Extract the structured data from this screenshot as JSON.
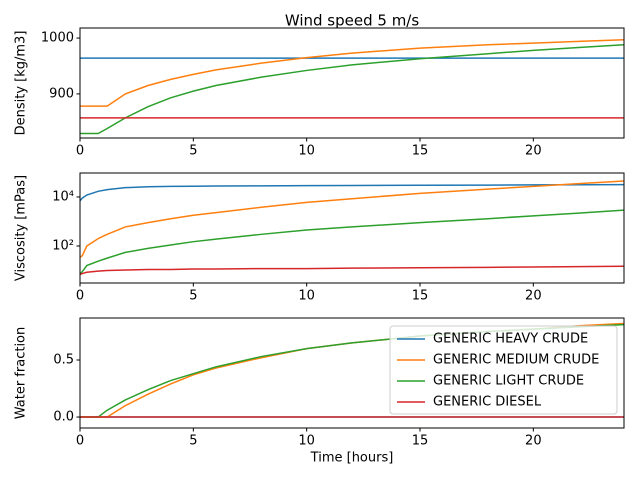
{
  "chart_data": [
    {
      "type": "line",
      "title": "Wind speed 5 m/s",
      "ylabel": "Density [kg/m3]",
      "x": [
        0,
        0.1,
        0.3,
        0.8,
        1.2,
        2,
        3,
        4,
        5,
        6,
        8,
        10,
        12,
        15,
        18,
        20,
        22,
        24
      ],
      "series": [
        {
          "color": "#1f77b4",
          "values": [
            964,
            964,
            964,
            964,
            964,
            964,
            964,
            964,
            964,
            964,
            964,
            964,
            964,
            964,
            964,
            964,
            964,
            964
          ]
        },
        {
          "color": "#ff7f0e",
          "values": [
            878,
            878,
            878,
            878,
            878,
            900,
            915,
            926,
            935,
            943,
            955,
            965,
            973,
            982,
            988,
            991,
            994,
            997
          ]
        },
        {
          "color": "#2ca02c",
          "values": [
            829,
            829,
            829,
            829,
            838,
            857,
            877,
            893,
            905,
            915,
            930,
            942,
            952,
            963,
            972,
            978,
            983,
            988
          ]
        },
        {
          "color": "#d62728",
          "values": [
            857,
            857,
            857,
            857,
            857,
            857,
            857,
            857,
            857,
            857,
            857,
            857,
            857,
            857,
            857,
            857,
            857,
            857
          ]
        }
      ],
      "xlim": [
        0,
        24
      ],
      "xticks": [
        0,
        5,
        10,
        15,
        20
      ],
      "ylim": [
        821,
        1018
      ],
      "yticks": [
        900,
        1000
      ]
    },
    {
      "type": "line",
      "ylabel": "Viscosity [mPas]",
      "yscale": "log",
      "x": [
        0,
        0.1,
        0.3,
        0.8,
        1.2,
        2,
        3,
        4,
        5,
        6,
        8,
        10,
        12,
        15,
        18,
        20,
        22,
        24
      ],
      "series": [
        {
          "color": "#1f77b4",
          "values": [
            7000,
            9000,
            12000,
            17000,
            20000,
            24000,
            26000,
            27000,
            27500,
            28000,
            28500,
            29000,
            29500,
            30000,
            30500,
            31000,
            31500,
            32000
          ]
        },
        {
          "color": "#ff7f0e",
          "values": [
            35,
            40,
            100,
            200,
            300,
            600,
            900,
            1300,
            1800,
            2300,
            3800,
            6000,
            8500,
            14000,
            21000,
            27000,
            35000,
            45000
          ]
        },
        {
          "color": "#2ca02c",
          "values": [
            7,
            9,
            16,
            24,
            32,
            55,
            80,
            110,
            150,
            190,
            300,
            450,
            600,
            900,
            1300,
            1700,
            2200,
            2900
          ]
        },
        {
          "color": "#d62728",
          "values": [
            7,
            7.5,
            8.5,
            9.5,
            10,
            10.5,
            11,
            11,
            11.5,
            11.5,
            12,
            12,
            12.5,
            13,
            13.5,
            14,
            14.5,
            15
          ]
        }
      ],
      "xlim": [
        0,
        24
      ],
      "xticks": [
        0,
        5,
        10,
        15,
        20
      ],
      "ylim": [
        3.1,
        95000
      ],
      "yticks": [
        {
          "value": 100,
          "label": "10²"
        },
        {
          "value": 10000,
          "label": "10⁴"
        }
      ]
    },
    {
      "type": "line",
      "ylabel": "Water fraction",
      "xlabel": "Time [hours]",
      "legend": "upper right",
      "x": [
        0,
        0.1,
        0.3,
        0.8,
        1.2,
        2,
        3,
        4,
        5,
        6,
        8,
        10,
        12,
        15,
        18,
        20,
        22,
        24
      ],
      "series": [
        {
          "name": "GENERIC HEAVY CRUDE",
          "color": "#1f77b4",
          "values": [
            0,
            0,
            0,
            0,
            0,
            0,
            0,
            0,
            0,
            0,
            0,
            0,
            0,
            0,
            0,
            0,
            0,
            0
          ]
        },
        {
          "name": "GENERIC MEDIUM CRUDE",
          "color": "#ff7f0e",
          "values": [
            0,
            0,
            0,
            0,
            0,
            0.1,
            0.2,
            0.29,
            0.37,
            0.43,
            0.52,
            0.6,
            0.65,
            0.71,
            0.75,
            0.77,
            0.8,
            0.82
          ]
        },
        {
          "name": "GENERIC LIGHT CRUDE",
          "color": "#2ca02c",
          "values": [
            0,
            0,
            0,
            0,
            0.06,
            0.15,
            0.24,
            0.32,
            0.38,
            0.44,
            0.53,
            0.6,
            0.65,
            0.71,
            0.75,
            0.77,
            0.79,
            0.81
          ]
        },
        {
          "name": "GENERIC DIESEL",
          "color": "#d62728",
          "values": [
            0,
            0,
            0,
            0,
            0,
            0,
            0,
            0,
            0,
            0,
            0,
            0,
            0,
            0,
            0,
            0,
            0,
            0
          ]
        }
      ],
      "xlim": [
        0,
        24
      ],
      "xticks": [
        0,
        5,
        10,
        15,
        20
      ],
      "ylim": [
        -0.096,
        0.868
      ],
      "yticks": [
        {
          "value": 0,
          "label": "0.0"
        },
        {
          "value": 0.5,
          "label": "0.5"
        }
      ]
    }
  ]
}
